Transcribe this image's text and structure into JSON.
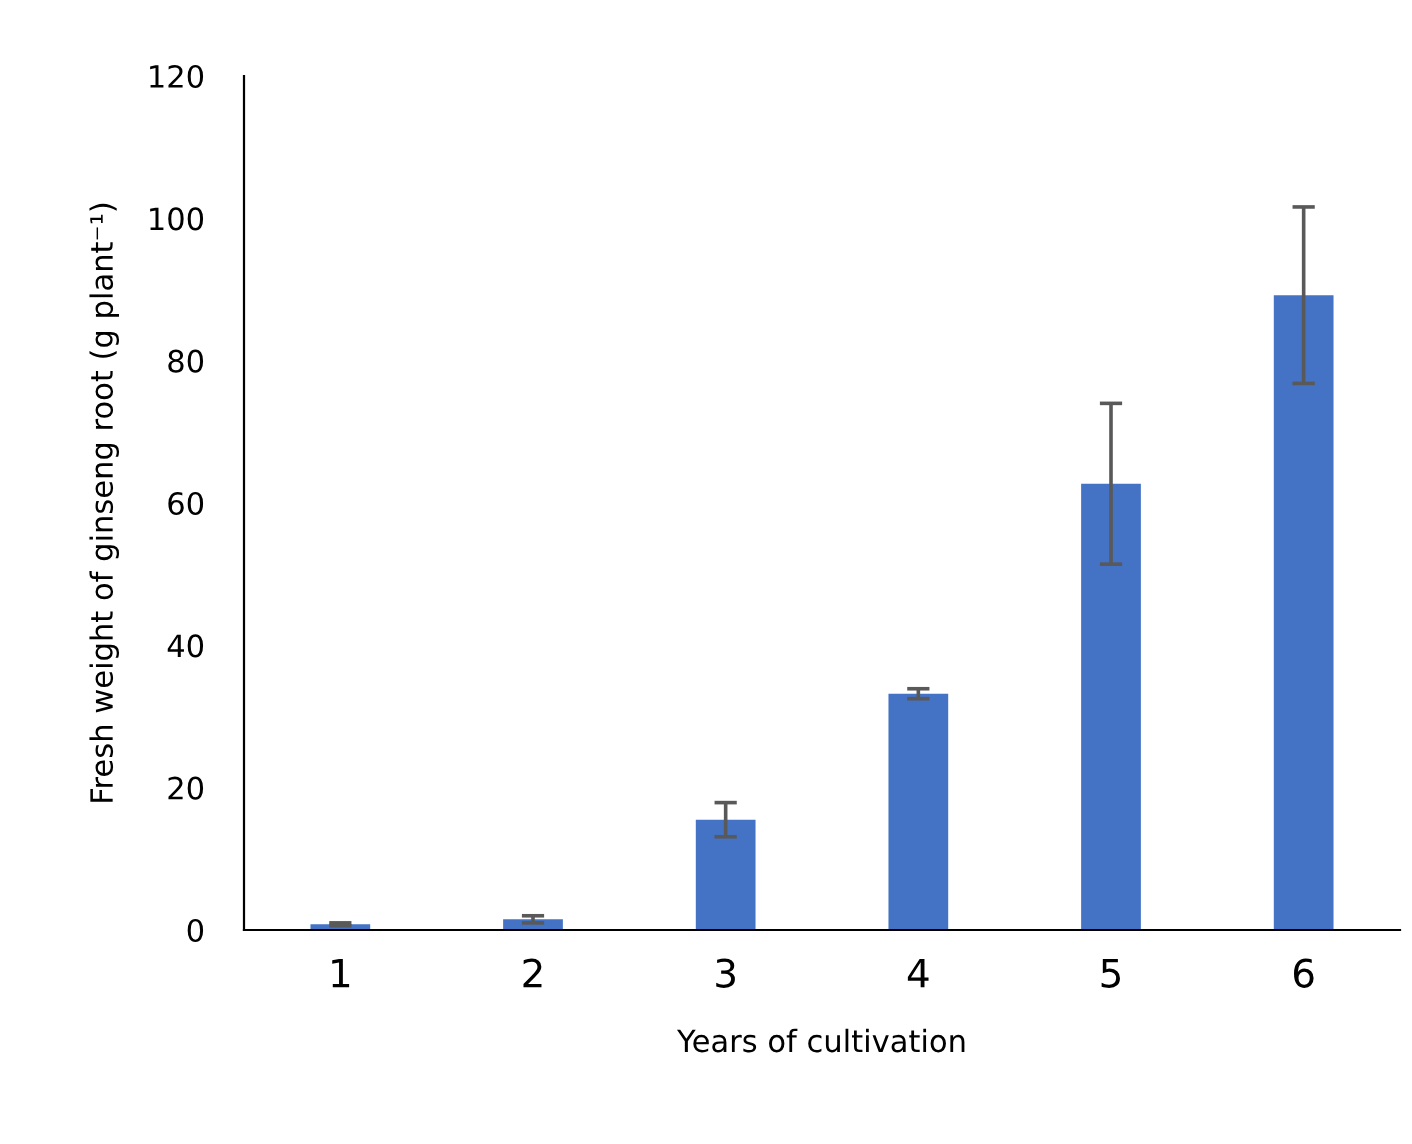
{
  "chart_data": {
    "type": "bar",
    "xlabel": "Years of cultivation",
    "ylabel": "Fresh weight of ginseng root (g plant⁻¹)",
    "categories": [
      "1",
      "2",
      "3",
      "4",
      "5",
      "6"
    ],
    "values": [
      0.8,
      1.5,
      15.5,
      33.2,
      62.7,
      89.2
    ],
    "errors": [
      0.2,
      0.5,
      2.4,
      0.7,
      11.3,
      12.4
    ],
    "color": "#4472c4",
    "ylim": [
      0,
      120
    ],
    "yticks": [
      0,
      20,
      40,
      60,
      80,
      100,
      120
    ],
    "grid": false
  }
}
